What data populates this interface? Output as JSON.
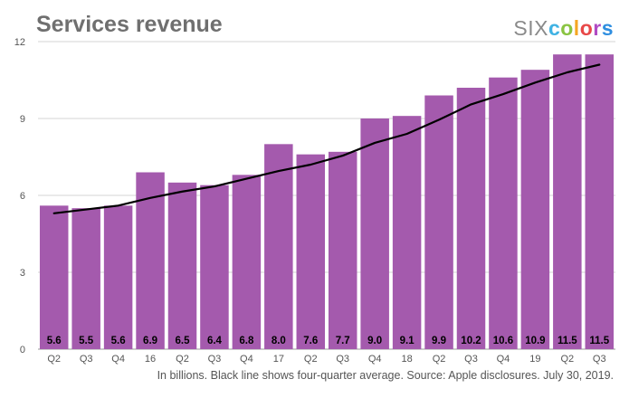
{
  "header": {
    "title": "Services revenue",
    "brand_six": "SIX",
    "brand_colors": [
      "c",
      "o",
      "l",
      "o",
      "r",
      "s"
    ]
  },
  "footnote": "In billions. Black line shows four-quarter average. Source: Apple disclosures. July 30, 2019.",
  "colors": {
    "bar": "#a45aad",
    "line": "#000000",
    "grid": "#d6d6d6",
    "title": "#6f6f6f",
    "brand_letters": [
      "#3fb2e3",
      "#8ac442",
      "#f5a623",
      "#e84848",
      "#b04bc3",
      "#2f8ee0"
    ]
  },
  "chart_data": {
    "type": "bar",
    "title": "Services revenue",
    "categories": [
      "Q2",
      "Q3",
      "Q4",
      "16",
      "Q2",
      "Q3",
      "Q4",
      "17",
      "Q2",
      "Q3",
      "Q4",
      "18",
      "Q2",
      "Q3",
      "Q4",
      "19",
      "Q2",
      "Q3"
    ],
    "series": [
      {
        "values": [
          5.6,
          5.5,
          5.6,
          6.9,
          6.5,
          6.4,
          6.8,
          8.0,
          7.6,
          7.7,
          9.0,
          9.1,
          9.9,
          10.2,
          10.6,
          10.9,
          11.5,
          11.5
        ]
      }
    ],
    "overlay_line": {
      "values": [
        5.3,
        5.45,
        5.6,
        5.9,
        6.15,
        6.35,
        6.65,
        6.95,
        7.2,
        7.55,
        8.05,
        8.4,
        8.95,
        9.55,
        9.95,
        10.4,
        10.8,
        11.1
      ]
    },
    "data_labels": [
      "5.6",
      "5.5",
      "5.6",
      "6.9",
      "6.5",
      "6.4",
      "6.8",
      "8.0",
      "7.6",
      "7.7",
      "9.0",
      "9.1",
      "9.9",
      "10.2",
      "10.6",
      "10.9",
      "11.5",
      "11.5"
    ],
    "yticks": [
      0,
      3,
      6,
      9,
      12
    ],
    "ylim": [
      0,
      12
    ],
    "grid": true,
    "legend": "none"
  }
}
